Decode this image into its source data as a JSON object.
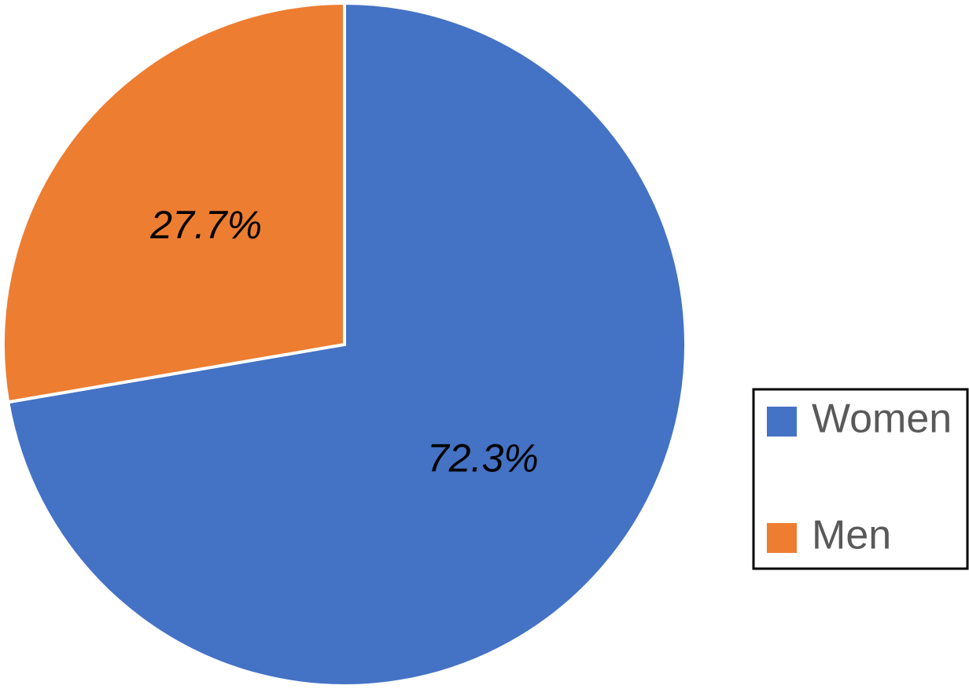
{
  "chart_data": {
    "type": "pie",
    "categories": [
      "Women",
      "Men"
    ],
    "values": [
      72.3,
      27.7
    ],
    "value_labels": [
      "72.3%",
      "27.7%"
    ],
    "colors": [
      "#4472c4",
      "#ed7d31"
    ],
    "legend": "right"
  }
}
